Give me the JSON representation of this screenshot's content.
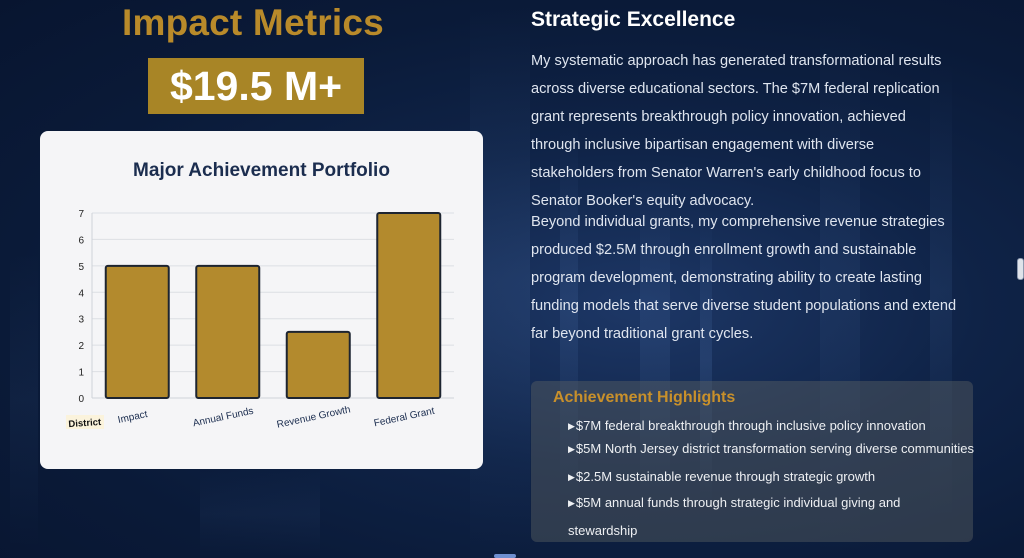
{
  "header": {
    "title": "Impact Metrics",
    "big_number": "$19.5 M+"
  },
  "chart_data": {
    "type": "bar",
    "title": "Major Achievement Portfolio",
    "categories": [
      "Impact",
      "Annual Funds",
      "Revenue Growth",
      "Federal Grant"
    ],
    "values": [
      5,
      5,
      2.5,
      7
    ],
    "ylim": [
      0,
      7
    ],
    "yticks": [
      0,
      1,
      2,
      3,
      4,
      5,
      6,
      7
    ],
    "grid": true,
    "bar_color": "#b38a2d",
    "bar_edge_color": "#1d2430",
    "extra_label": "District"
  },
  "strategy": {
    "heading": "Strategic Excellence",
    "paragraph1_lines": [
      "My systematic approach has generated transformational results",
      "across diverse educational sectors. The $7M federal replication",
      "grant represents breakthrough policy innovation, achieved",
      "through inclusive bipartisan engagement with diverse",
      "stakeholders from Senator Warren's early childhood focus to",
      "Senator Booker's equity advocacy."
    ],
    "paragraph2_lines": [
      "Beyond individual grants, my comprehensive revenue strategies",
      "produced $2.5M through enrollment growth and sustainable",
      "program development, demonstrating ability to create lasting",
      "funding models that serve diverse student populations and extend",
      "far beyond traditional grant cycles."
    ]
  },
  "highlights": {
    "title": "Achievement Highlights",
    "items": [
      "$7M federal breakthrough through inclusive policy innovation",
      "$5M North Jersey district transformation serving diverse communities",
      "$2.5M sustainable revenue through strategic growth",
      "$5M annual funds through strategic individual giving and stewardship"
    ]
  },
  "colors": {
    "accent_gold": "#b98a2a",
    "number_bg": "#a88526",
    "background": "#0f2347"
  }
}
